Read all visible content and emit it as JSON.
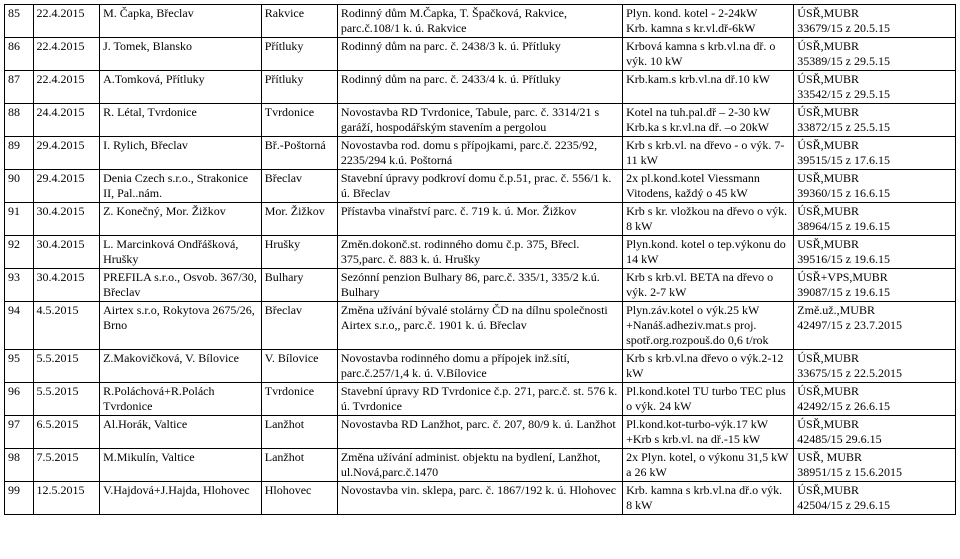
{
  "rows": [
    {
      "n": "85",
      "date": "22.4.2015",
      "app": "M. Čapka, Břeclav",
      "loc": "Rakvice",
      "desc": "Rodinný dům M.Čapka, T. Špačková, Rakvice, parc.č.108/1 k. ú. Rakvice",
      "heat": "Plyn. kond. kotel - 2-24kW\nKrb. kamna s kr.vl.dř-6kW",
      "ref": "ÚSŘ,MUBR\n33679/15 z 20.5.15"
    },
    {
      "n": "86",
      "date": "22.4.2015",
      "app": "J. Tomek, Blansko",
      "loc": "Přítluky",
      "desc": "Rodinný dům na parc. č. 2438/3 k. ú. Přítluky",
      "heat": "Krbová kamna s krb.vl.na dř. o výk. 10 kW",
      "ref": "ÚSŘ,MUBR\n35389/15 z 29.5.15"
    },
    {
      "n": "87",
      "date": "22.4.2015",
      "app": "A.Tomková, Přítluky",
      "loc": "Přítluky",
      "desc": "Rodinný dům na parc. č. 2433/4 k. ú. Přítluky",
      "heat": "Krb.kam.s krb.vl.na dř.10 kW",
      "ref": "ÚSŘ,MUBR\n33542/15 z 29.5.15"
    },
    {
      "n": "88",
      "date": "24.4.2015",
      "app": "R. Létal, Tvrdonice",
      "loc": "Tvrdonice",
      "desc": "Novostavba RD Tvrdonice, Tabule, parc. č. 3314/21 s garáží, hospodářským stavením a pergolou",
      "heat": "Kotel na tuh.pal.dř – 2-30 kW\nKrb.ka s kr.vl.na dř. –o 20kW",
      "ref": "ÚSŘ,MUBR\n33872/15 z 25.5.15"
    },
    {
      "n": "89",
      "date": "29.4.2015",
      "app": "I. Rylich, Břeclav",
      "loc": "Bř.-Poštorná",
      "desc": "Novostavba rod. domu s přípojkami, parc.č. 2235/92, 2235/294 k.ú. Poštorná",
      "heat": "Krb s krb.vl. na dřevo - o výk. 7-11 kW",
      "ref": "ÚSŘ,MUBR\n39515/15 z 17.6.15"
    },
    {
      "n": "90",
      "date": "29.4.2015",
      "app": "Denia Czech s.r.o., Strakonice II, Pal..nám.",
      "loc": "Břeclav",
      "desc": "Stavební úpravy podkroví domu č.p.51, prac. č. 556/1 k. ú. Břeclav",
      "heat": "2x pl.kond.kotel Viessmann Vitodens, každý o 45 kW",
      "ref": "USŘ,MUBR\n39360/15 z 16.6.15"
    },
    {
      "n": "91",
      "date": "30.4.2015",
      "app": "Z. Konečný, Mor. Žižkov",
      "loc": "Mor. Žižkov",
      "desc": "Přístavba vinařství parc. č. 719 k. ú. Mor. Žižkov",
      "heat": "Krb s kr. vložkou na dřevo o výk. 8 kW",
      "ref": "ÚSŘ,MUBR\n38964/15 z 19.6.15"
    },
    {
      "n": "92",
      "date": "30.4.2015",
      "app": "L. Marcinková Ondřášková, Hrušky",
      "loc": "Hrušky",
      "desc": "Změn.dokonč.st. rodinného domu č.p. 375, Břecl. 375,parc. č. 883 k. ú. Hrušky",
      "heat": "Plyn.kond. kotel o tep.výkonu do 14 kW",
      "ref": "USŘ,MUBR\n39516/15 z 19.6.15"
    },
    {
      "n": "93",
      "date": "30.4.2015",
      "app": "PREFILA s.r.o., Osvob. 367/30, Břeclav",
      "loc": "Bulhary",
      "desc": "Sezónní penzion Bulhary 86, parc.č. 335/1, 335/2 k.ú. Bulhary",
      "heat": "Krb s krb.vl. BETA na dřevo o výk. 2-7 kW",
      "ref": "ÚSŘ+VPS,MUBR\n39087/15 z 19.6.15"
    },
    {
      "n": "94",
      "date": "4.5.2015",
      "app": "Airtex s.r.o, Rokytova 2675/26, Brno",
      "loc": "Břeclav",
      "desc": "Změna užívání bývalé stolárny ČD na dílnu společnosti Airtex s.r.o,, parc.č. 1901 k. ú. Břeclav",
      "heat": "Plyn.záv.kotel o výk.25 kW +Nanáš.adheziv.mat.s proj. spotř.org.rozpouš.do 0,6 t/rok",
      "ref": "Změ.už.,MUBR\n42497/15 z 23.7.2015"
    },
    {
      "n": "95",
      "date": "5.5.2015",
      "app": "Z.Makovičková, V. Bílovice",
      "loc": "V. Bílovice",
      "desc": "Novostavba rodinného domu a přípojek inž.sítí, parc.č.257/1,4 k. ú. V.Bílovice",
      "heat": "Krb s krb.vl.na dřevo o výk.2-12 kW",
      "ref": "ÚSŘ,MUBR\n33675/15 z 22.5.2015"
    },
    {
      "n": "96",
      "date": "5.5.2015",
      "app": "R.Poláchová+R.Polách Tvrdonice",
      "loc": "Tvrdonice",
      "desc": "Stavební úpravy RD Tvrdonice č.p. 271, parc.č. st. 576 k. ú. Tvrdonice",
      "heat": "Pl.kond.kotel TU turbo TEC plus o výk. 24 kW",
      "ref": "ÚSŘ,MUBR\n42492/15 z 26.6.15"
    },
    {
      "n": "97",
      "date": "6.5.2015",
      "app": "Al.Horák, Valtice",
      "loc": "Lanžhot",
      "desc": "Novostavba RD Lanžhot, parc. č. 207, 80/9 k. ú. Lanžhot",
      "heat": "Pl.kond.kot-turbo-výk.17 kW +Krb s krb.vl. na dř.-15 kW",
      "ref": "ÚSŘ,MUBR\n42485/15 29.6.15"
    },
    {
      "n": "98",
      "date": "7.5.2015",
      "app": "M.Mikulín, Valtice",
      "loc": "Lanžhot",
      "desc": "Změna užívání administ. objektu na bydlení, Lanžhot, ul.Nová,parc.č.1470",
      "heat": "2x Plyn. kotel, o výkonu 31,5 kW a 26 kW",
      "ref": "USŘ, MUBR\n38951/15 z 15.6.2015"
    },
    {
      "n": "99",
      "date": "12.5.2015",
      "app": "V.Hajdová+J.Hajda, Hlohovec",
      "loc": "Hlohovec",
      "desc": "Novostavba vin. sklepa, parc. č. 1867/192 k. ú. Hlohovec",
      "heat": "Krb. kamna s krb.vl.na dř.o výk. 8 kW",
      "ref": "ÚSŘ,MUBR\n42504/15 z 29.6.15"
    }
  ]
}
